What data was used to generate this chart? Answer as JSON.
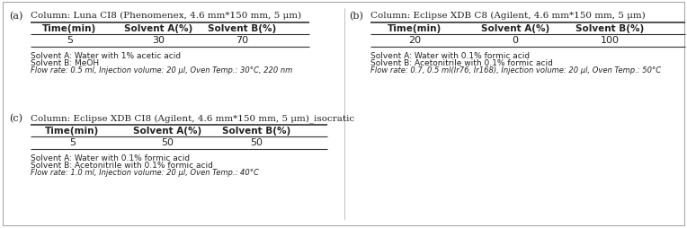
{
  "panel_a": {
    "label": "(a)",
    "column": "Column: Luna CI8 (Phenomenex, 4.6 mm*150 mm, 5 μm)",
    "headers": [
      "Time(min)",
      "Solvent A(%)",
      "Solvent B(%)"
    ],
    "rows": [
      [
        "5",
        "30",
        "70"
      ]
    ],
    "notes": [
      "Solvent A: Water with 1% acetic acid",
      "Solvent B: MeOH",
      "Flow rate: 0.5 ml, Injection volume: 20 μl, Oven Temp.: 30°C, 220 nm"
    ]
  },
  "panel_b": {
    "label": "(b)",
    "column": "Column: Eclipse XDB C8 (Agilent, 4.6 mm*150 mm, 5 μm)",
    "headers": [
      "Time(min)",
      "Solvent A(%)",
      "Solvent B(%)"
    ],
    "rows": [
      [
        "20",
        "0",
        "100"
      ]
    ],
    "notes": [
      "Solvent A: Water with 0.1% formic acid",
      "Solvent B: Acetonitrile with 0.1% formic acid",
      "Flow rate: 0.7, 0.5 ml(Ir76, Ir168), Injection volume: 20 μl, Oven Temp.: 50°C"
    ]
  },
  "panel_c": {
    "label": "(c)",
    "column": "Column: Eclipse XDB CI8 (Agilent, 4.6 mm*150 mm, 5 μm)_isocratic",
    "headers": [
      "Time(min)",
      "Solvent A(%)",
      "Solvent B(%)"
    ],
    "rows": [
      [
        "5",
        "50",
        "50"
      ]
    ],
    "notes": [
      "Solvent A: Water with 0.1% formic acid",
      "Solvent B: Acetonitrile with 0.1% formic acid",
      "Flow rate: 1.0 ml, Injection volume: 20 μl, Oven Temp.: 40°C"
    ]
  },
  "bg_color": "#ffffff",
  "text_color": "#222222",
  "line_color": "#333333"
}
